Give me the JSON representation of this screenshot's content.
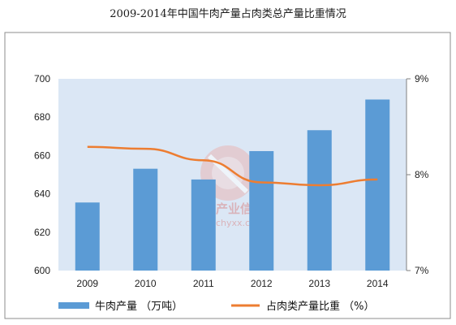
{
  "chart_data": {
    "type": "bar+line",
    "title": "2009-2014年中国牛肉产量占肉类总产量比重情况",
    "categories": [
      "2009",
      "2010",
      "2011",
      "2012",
      "2013",
      "2014"
    ],
    "series": [
      {
        "name": "牛肉产量 （万吨）",
        "type": "bar",
        "axis": "left",
        "color": "#5b9bd5",
        "values": [
          635.5,
          653.1,
          647.5,
          662.3,
          673.2,
          689.2
        ]
      },
      {
        "name": "占肉类产量比重 （%）",
        "type": "line",
        "axis": "right",
        "color": "#ed7d31",
        "values": [
          8.29,
          8.27,
          8.15,
          7.92,
          7.89,
          7.95
        ]
      }
    ],
    "y_left": {
      "ylim": [
        600,
        700
      ],
      "ticks": [
        "600",
        "620",
        "640",
        "660",
        "680",
        "700"
      ]
    },
    "y_right": {
      "ylim": [
        7,
        9
      ],
      "ticks": [
        "7%",
        "8%",
        "9%"
      ]
    },
    "grid": false,
    "legend": "bottom"
  },
  "watermark": {
    "text": "中国产业信息",
    "url": "www.chyxx.com"
  }
}
